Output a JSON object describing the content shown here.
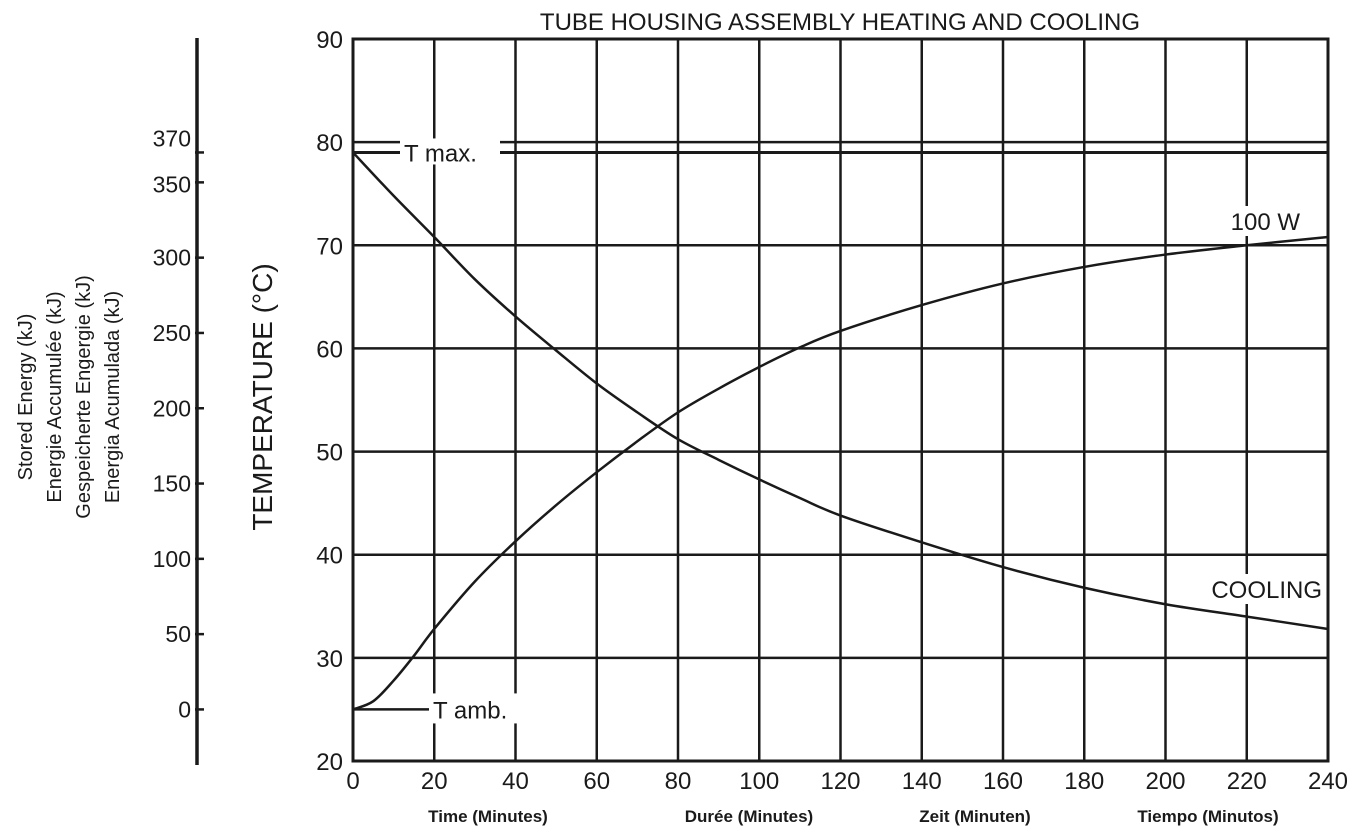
{
  "chart_data": {
    "type": "line",
    "title": "TUBE HOUSING ASSEMBLY HEATING AND COOLING",
    "ylabel": "TEMPERATURE (°C)",
    "xlim": [
      0,
      240
    ],
    "ylim": [
      20,
      90
    ],
    "grid": true,
    "x_ticks": [
      0,
      20,
      40,
      60,
      80,
      100,
      120,
      140,
      160,
      180,
      200,
      220,
      240
    ],
    "y_ticks": [
      20,
      30,
      40,
      50,
      60,
      70,
      80,
      90
    ],
    "x_axis_labels": [
      "Time  (Minutes)",
      "Durée  (Minutes)",
      "Zeit  (Minuten)",
      "Tiempo (Minutos)"
    ],
    "energy_axis": {
      "labels": [
        "Stored Energy (kJ)",
        "Energie Accumulée (kJ)",
        "Gespeicherte Engergie (kJ)",
        "Energia Acumulada (kJ)"
      ],
      "ticks": [
        {
          "value": 0,
          "temp": 25
        },
        {
          "value": 50,
          "temp": 32.3
        },
        {
          "value": 100,
          "temp": 39.6
        },
        {
          "value": 150,
          "temp": 46.9
        },
        {
          "value": 200,
          "temp": 54.2
        },
        {
          "value": 250,
          "temp": 61.5
        },
        {
          "value": 300,
          "temp": 68.8
        },
        {
          "value": 350,
          "temp": 76.1
        },
        {
          "value": 370,
          "temp": 79
        }
      ]
    },
    "reference_lines": [
      {
        "label": "T max.",
        "y": 79
      },
      {
        "label": "T amb.",
        "y": 25
      }
    ],
    "series": [
      {
        "name": "100 W",
        "x": [
          0,
          5,
          10,
          15,
          20,
          30,
          40,
          50,
          60,
          70,
          80,
          90,
          100,
          110,
          120,
          140,
          160,
          180,
          200,
          220,
          240
        ],
        "y": [
          25,
          25.8,
          27.8,
          30.2,
          32.8,
          37.4,
          41.3,
          44.8,
          48,
          51,
          53.8,
          56.1,
          58.2,
          60.1,
          61.7,
          64.2,
          66.3,
          67.9,
          69.1,
          70,
          70.8
        ]
      },
      {
        "name": "COOLING",
        "x": [
          0,
          10,
          20,
          30,
          40,
          50,
          60,
          70,
          80,
          90,
          100,
          110,
          120,
          140,
          160,
          180,
          200,
          220,
          240
        ],
        "y": [
          79,
          74.8,
          70.8,
          66.7,
          63.1,
          59.8,
          56.6,
          53.8,
          51.2,
          49.2,
          47.3,
          45.5,
          43.8,
          41.2,
          38.8,
          36.8,
          35.2,
          34,
          32.8
        ]
      }
    ]
  }
}
